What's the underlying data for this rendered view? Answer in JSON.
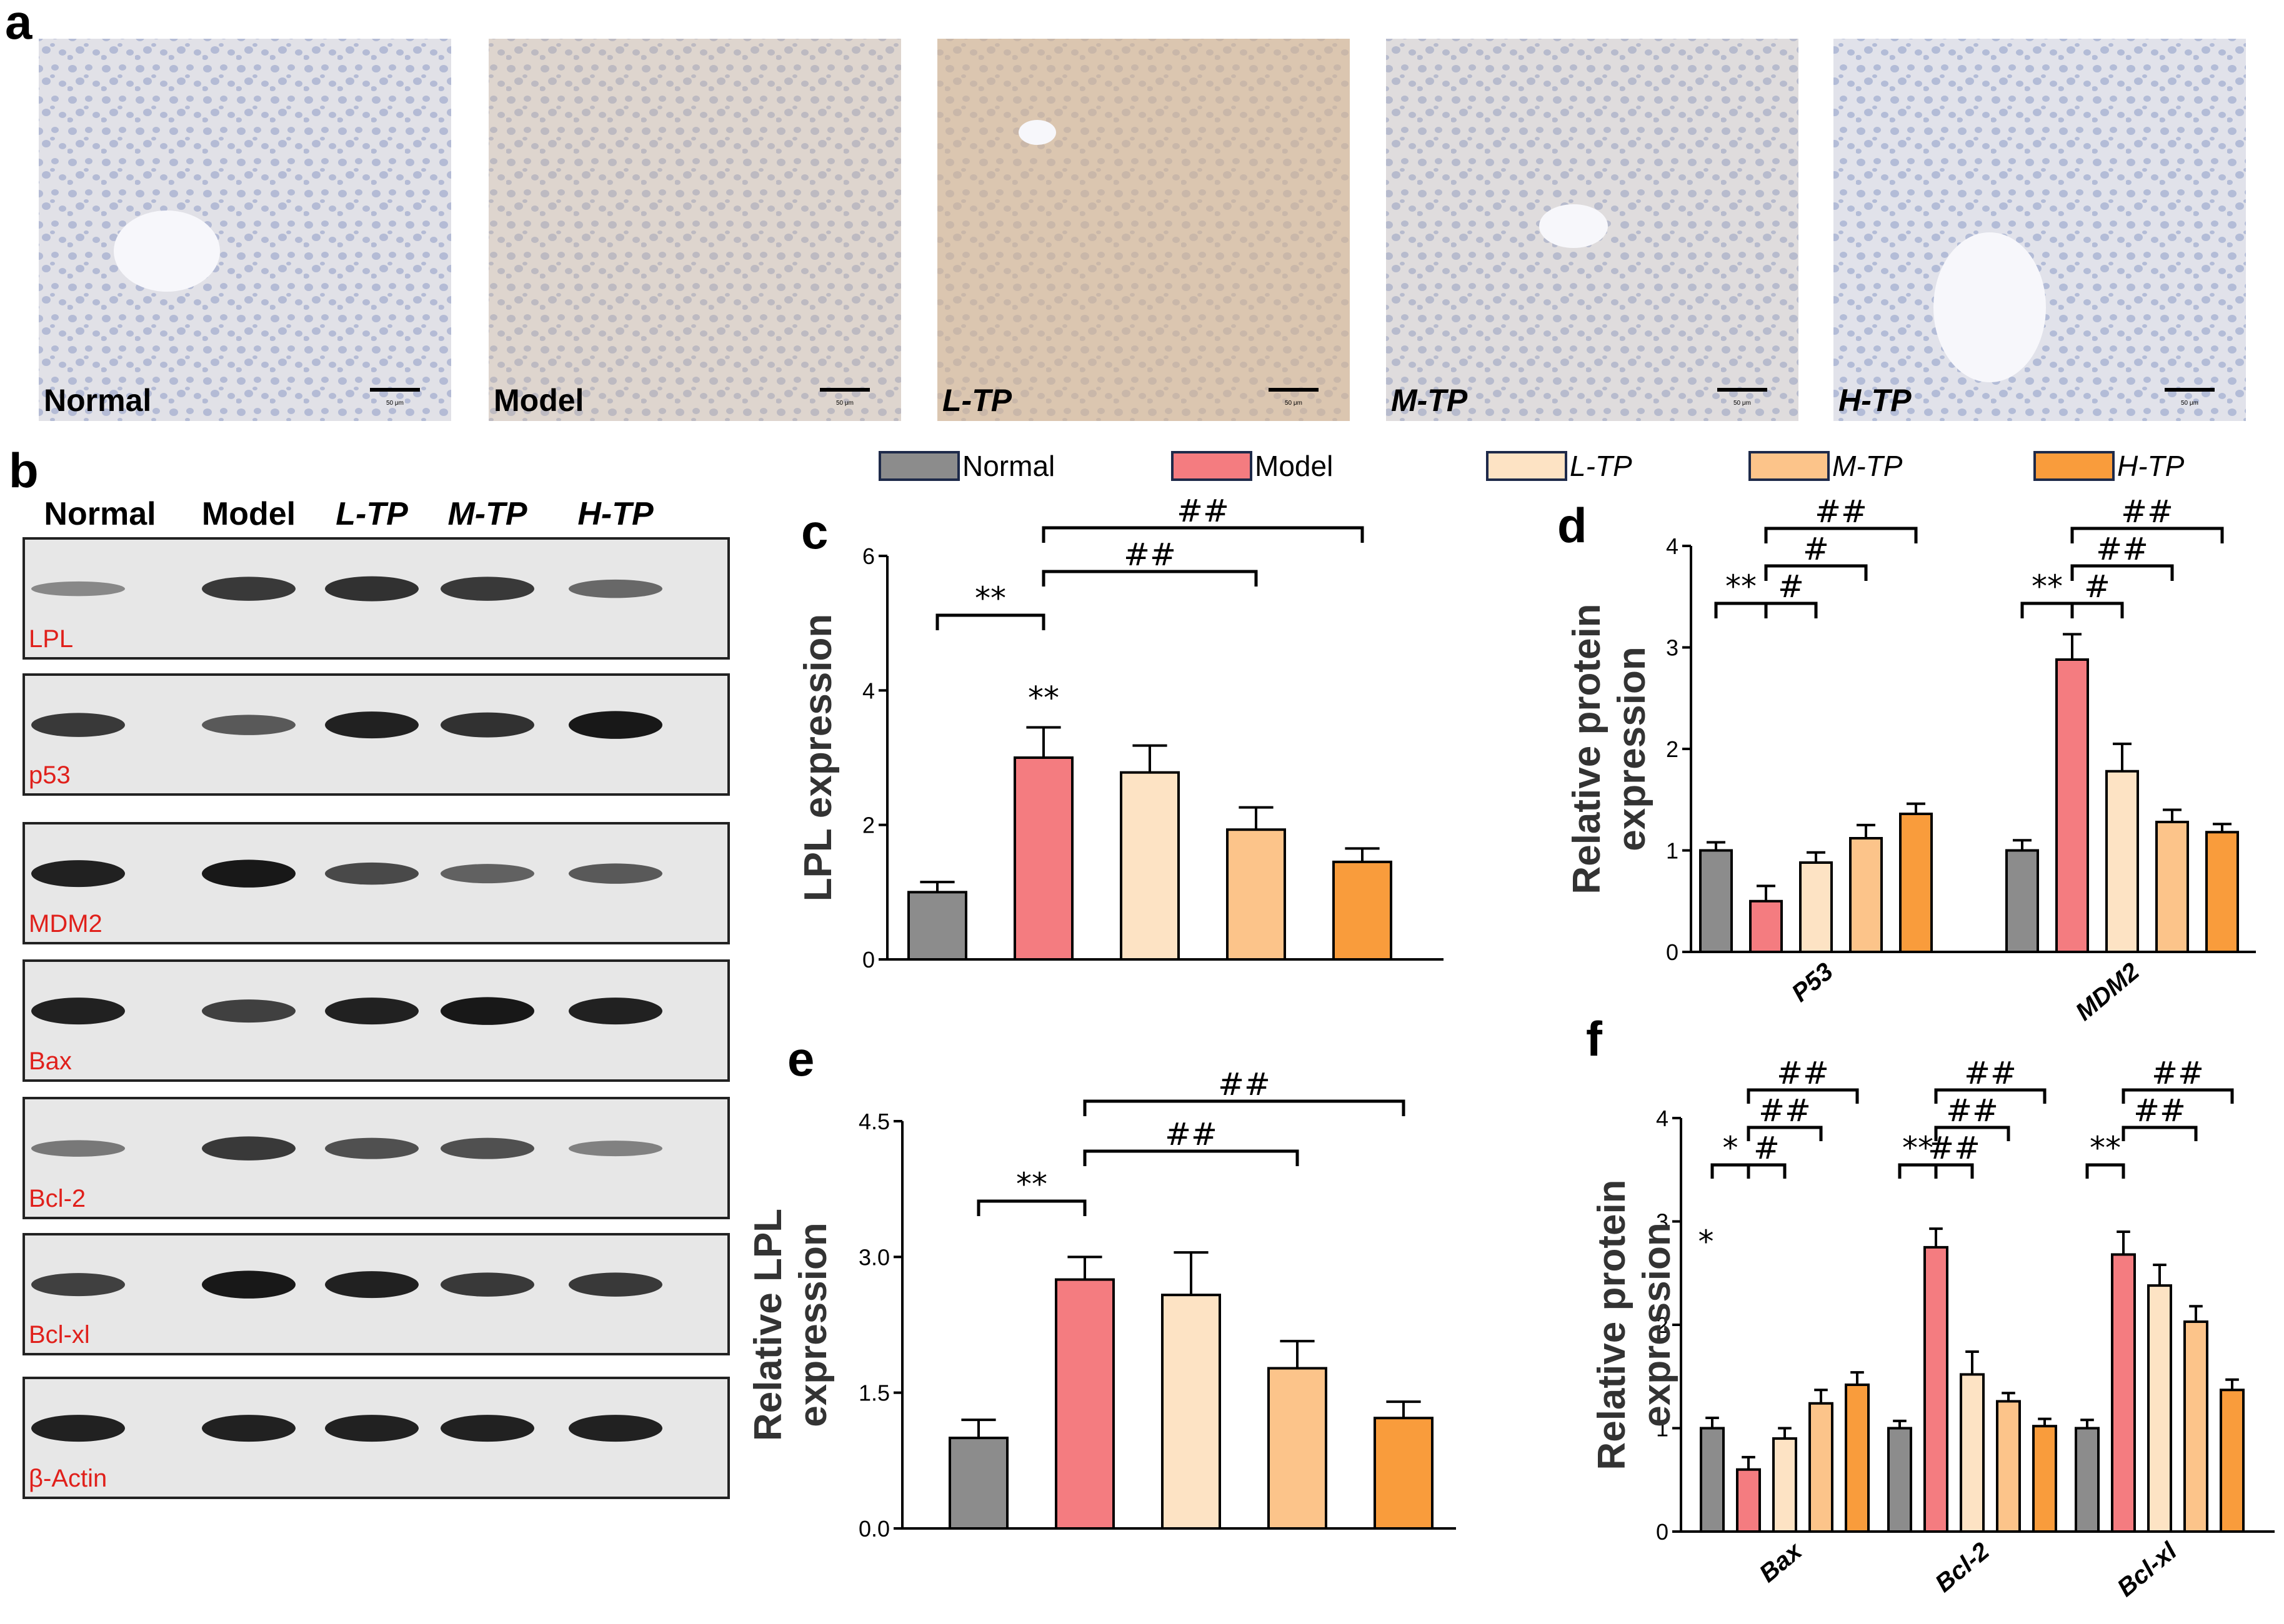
{
  "panel_letters": {
    "a": "a",
    "b": "b",
    "c": "c",
    "d": "d",
    "e": "e",
    "f": "f"
  },
  "groups": [
    {
      "name": "Normal",
      "italic": false,
      "color": "#8c8c8c"
    },
    {
      "name": "Model",
      "italic": false,
      "color": "#f47c80"
    },
    {
      "name": "L-TP",
      "italic": true,
      "color": "#fde3c4"
    },
    {
      "name": "M-TP",
      "italic": true,
      "color": "#fcc48a"
    },
    {
      "name": "H-TP",
      "italic": true,
      "color": "#f99c3c"
    }
  ],
  "micrographs": {
    "labels": [
      "Normal",
      "Model",
      "L-TP",
      "M-TP",
      "H-TP"
    ],
    "scale_bar": "50 μm",
    "brown_staining_level": [
      0.1,
      0.35,
      0.65,
      0.2,
      0.08
    ]
  },
  "western_blot": {
    "lane_labels": [
      "Normal",
      "Model",
      "L-TP",
      "M-TP",
      "H-TP"
    ],
    "proteins": [
      {
        "name": "LPL",
        "intensity": [
          0.25,
          0.75,
          0.8,
          0.75,
          0.45
        ]
      },
      {
        "name": "p53",
        "intensity": [
          0.75,
          0.55,
          0.9,
          0.8,
          0.95
        ]
      },
      {
        "name": "MDM2",
        "intensity": [
          0.9,
          0.95,
          0.65,
          0.5,
          0.55
        ]
      },
      {
        "name": "Bax",
        "intensity": [
          0.9,
          0.7,
          0.9,
          0.95,
          0.9
        ]
      },
      {
        "name": "Bcl-2",
        "intensity": [
          0.35,
          0.75,
          0.6,
          0.6,
          0.3
        ]
      },
      {
        "name": "Bcl-xl",
        "intensity": [
          0.7,
          0.95,
          0.9,
          0.75,
          0.75
        ]
      },
      {
        "name": "β-Actin",
        "intensity": [
          0.9,
          0.9,
          0.9,
          0.9,
          0.9
        ]
      }
    ]
  },
  "chart_data": [
    {
      "panel": "c",
      "type": "bar",
      "categories": [
        "Normal",
        "Model",
        "L-TP",
        "M-TP",
        "H-TP"
      ],
      "values": [
        1.0,
        3.0,
        2.78,
        1.93,
        1.45
      ],
      "errors": [
        0.15,
        0.45,
        0.4,
        0.33,
        0.2
      ],
      "ylabel": "LPL expression",
      "ylim": [
        0,
        6
      ],
      "yticks": [
        "0",
        "2",
        "4",
        "6"
      ],
      "value_marks": [
        {
          "bar": 1,
          "text": "**"
        }
      ],
      "brackets": [
        {
          "from": 0,
          "to": 1,
          "level": 0,
          "text": "**"
        },
        {
          "from": 1,
          "to": 3,
          "level": 1,
          "text": "##"
        },
        {
          "from": 1,
          "to": 4,
          "level": 2,
          "text": "##"
        }
      ]
    },
    {
      "panel": "d",
      "type": "bar",
      "categories": [
        "P53",
        "MDM2"
      ],
      "series": [
        {
          "name": "Normal",
          "values": [
            1.0,
            1.0
          ],
          "errors": [
            0.08,
            0.1
          ]
        },
        {
          "name": "Model",
          "values": [
            0.5,
            2.88
          ],
          "errors": [
            0.15,
            0.25
          ]
        },
        {
          "name": "L-TP",
          "values": [
            0.88,
            1.78
          ],
          "errors": [
            0.1,
            0.27
          ]
        },
        {
          "name": "M-TP",
          "values": [
            1.12,
            1.28
          ],
          "errors": [
            0.13,
            0.12
          ]
        },
        {
          "name": "H-TP",
          "values": [
            1.36,
            1.18
          ],
          "errors": [
            0.1,
            0.08
          ]
        }
      ],
      "ylabel": "Relative protein expression",
      "ylim": [
        0,
        4
      ],
      "yticks": [
        "0",
        "1",
        "2",
        "3",
        "4"
      ],
      "brackets": [
        {
          "cat": 0,
          "from": 0,
          "to": 1,
          "level": 0,
          "text": "**"
        },
        {
          "cat": 0,
          "from": 1,
          "to": 2,
          "level": 0,
          "text": "#"
        },
        {
          "cat": 0,
          "from": 1,
          "to": 3,
          "level": 1,
          "text": "#"
        },
        {
          "cat": 0,
          "from": 1,
          "to": 4,
          "level": 2,
          "text": "##"
        },
        {
          "cat": 1,
          "from": 0,
          "to": 1,
          "level": 0,
          "text": "**"
        },
        {
          "cat": 1,
          "from": 1,
          "to": 2,
          "level": 0,
          "text": "#"
        },
        {
          "cat": 1,
          "from": 1,
          "to": 3,
          "level": 1,
          "text": "##"
        },
        {
          "cat": 1,
          "from": 1,
          "to": 4,
          "level": 2,
          "text": "##"
        }
      ]
    },
    {
      "panel": "e",
      "type": "bar",
      "categories": [
        "Normal",
        "Model",
        "L-TP",
        "M-TP",
        "H-TP"
      ],
      "values": [
        1.0,
        2.75,
        2.58,
        1.77,
        1.22
      ],
      "errors": [
        0.2,
        0.25,
        0.47,
        0.3,
        0.18
      ],
      "ylabel": "Relative LPL expression",
      "ylim": [
        0,
        4.5
      ],
      "yticks": [
        "0.0",
        "1.5",
        "3.0",
        "4.5"
      ],
      "brackets": [
        {
          "from": 0,
          "to": 1,
          "level": 0,
          "text": "**"
        },
        {
          "from": 1,
          "to": 3,
          "level": 1,
          "text": "##"
        },
        {
          "from": 1,
          "to": 4,
          "level": 2,
          "text": "##"
        }
      ]
    },
    {
      "panel": "f",
      "type": "bar",
      "categories": [
        "Bax",
        "Bcl-2",
        "Bcl-xl"
      ],
      "series": [
        {
          "name": "Normal",
          "values": [
            1.0,
            1.0,
            1.0
          ],
          "errors": [
            0.1,
            0.07,
            0.08
          ]
        },
        {
          "name": "Model",
          "values": [
            0.6,
            2.75,
            2.68
          ],
          "errors": [
            0.12,
            0.18,
            0.22
          ]
        },
        {
          "name": "L-TP",
          "values": [
            0.9,
            1.52,
            2.38
          ],
          "errors": [
            0.1,
            0.22,
            0.2
          ]
        },
        {
          "name": "M-TP",
          "values": [
            1.24,
            1.26,
            2.03
          ],
          "errors": [
            0.13,
            0.08,
            0.15
          ]
        },
        {
          "name": "H-TP",
          "values": [
            1.42,
            1.02,
            1.37
          ],
          "errors": [
            0.12,
            0.07,
            0.1
          ]
        }
      ],
      "ylabel": "Relative protein expression",
      "ylim": [
        0,
        4
      ],
      "yticks": [
        "0",
        "1",
        "2",
        "3",
        "4"
      ],
      "side_marks": [
        {
          "cat": 0,
          "text": "*"
        }
      ],
      "brackets": [
        {
          "cat": 0,
          "from": 0,
          "to": 1,
          "level": 0,
          "text": "*"
        },
        {
          "cat": 0,
          "from": 1,
          "to": 2,
          "level": 0,
          "text": "#"
        },
        {
          "cat": 0,
          "from": 1,
          "to": 3,
          "level": 1,
          "text": "##"
        },
        {
          "cat": 0,
          "from": 1,
          "to": 4,
          "level": 2,
          "text": "##"
        },
        {
          "cat": 1,
          "from": 0,
          "to": 1,
          "level": 0,
          "text": "**"
        },
        {
          "cat": 1,
          "from": 1,
          "to": 2,
          "level": 0,
          "text": "##"
        },
        {
          "cat": 1,
          "from": 1,
          "to": 3,
          "level": 1,
          "text": "##"
        },
        {
          "cat": 1,
          "from": 1,
          "to": 4,
          "level": 2,
          "text": "##"
        },
        {
          "cat": 2,
          "from": 0,
          "to": 1,
          "level": 0,
          "text": "**"
        },
        {
          "cat": 2,
          "from": 1,
          "to": 3,
          "level": 1,
          "text": "##"
        },
        {
          "cat": 2,
          "from": 1,
          "to": 4,
          "level": 2,
          "text": "##"
        }
      ]
    }
  ]
}
